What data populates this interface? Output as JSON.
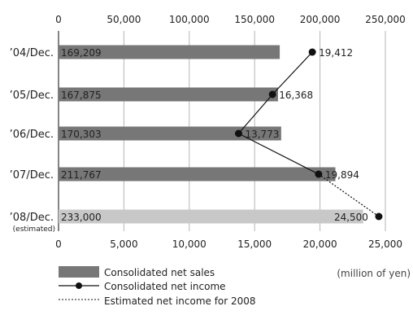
{
  "chart_data": {
    "type": "bar",
    "orientation": "horizontal",
    "categories": [
      "’04/Dec.",
      "’05/Dec.",
      "’06/Dec.",
      "’07/Dec.",
      "’08/Dec."
    ],
    "category_notes": [
      "",
      "",
      "",
      "",
      "(estimated)"
    ],
    "top_axis": {
      "min": 0,
      "max": 250000,
      "ticks": [
        "0",
        "50,000",
        "100,000",
        "150,000",
        "200,000",
        "250,000"
      ]
    },
    "bottom_axis": {
      "min": 0,
      "max": 25000,
      "ticks": [
        "0",
        "5,000",
        "10,000",
        "15,000",
        "20,000",
        "25,000"
      ]
    },
    "series": [
      {
        "name": "Consolidated net sales",
        "axis": "top",
        "values": [
          169209,
          167875,
          170303,
          211767,
          233000
        ],
        "labels": [
          "169,209",
          "167,875",
          "170,303",
          "211,767",
          "233,000"
        ],
        "colors": [
          "#777777",
          "#777777",
          "#777777",
          "#777777",
          "#c8c8c8"
        ]
      },
      {
        "name": "Consolidated net income",
        "axis": "bottom",
        "values": [
          19412,
          16368,
          13773,
          19894,
          24500
        ],
        "labels": [
          "19,412",
          "16,368",
          "13,773",
          "19,894",
          "24,500"
        ],
        "estimated_last": true
      }
    ],
    "legend": [
      {
        "label": "Consolidated net sales"
      },
      {
        "label": "Consolidated net income"
      },
      {
        "label": "Estimated net income for 2008"
      }
    ],
    "unit_note": "(million of yen)",
    "grid": true,
    "colors": {
      "bar": "#777777",
      "bar_estimated": "#c8c8c8",
      "line": "#111111",
      "grid": "#b5b5b5"
    }
  }
}
